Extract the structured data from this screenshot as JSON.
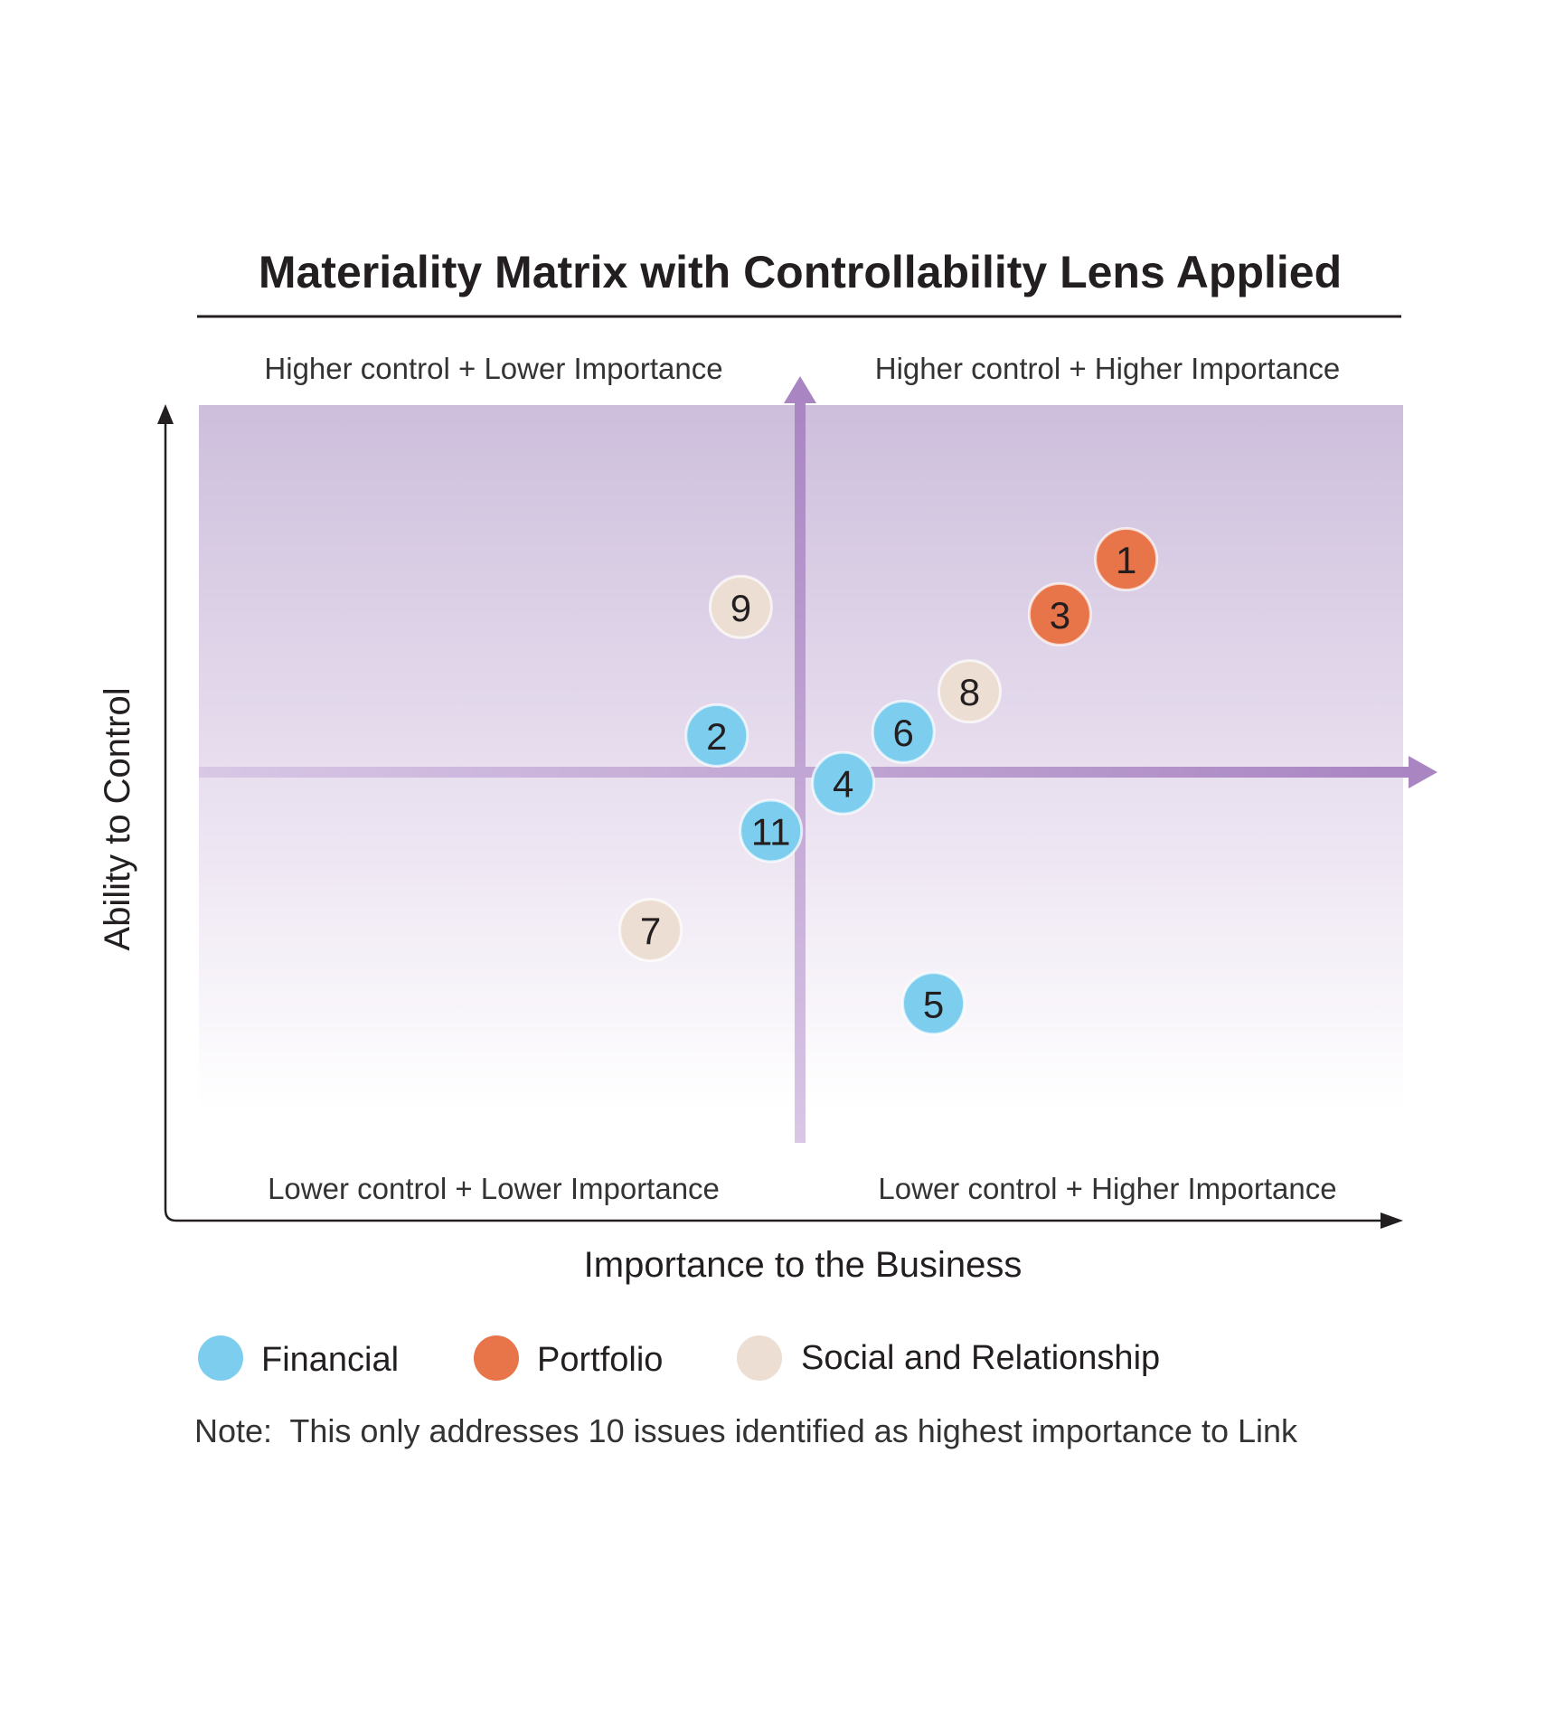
{
  "chart_data": {
    "type": "scatter",
    "title": "Materiality Matrix with Controllability Lens Applied",
    "xlabel": "Importance to the Business",
    "ylabel": "Ability to Control",
    "quadrants": {
      "top_left": "Higher control + Lower Importance",
      "top_right": "Higher control + Higher Importance",
      "bottom_left": "Lower control + Lower Importance",
      "bottom_right": "Lower control + Higher Importance"
    },
    "xlim": [
      0,
      10
    ],
    "ylim": [
      0,
      10
    ],
    "grid": false,
    "legend_position": "bottom",
    "colors": {
      "Financial": "#7dcdef",
      "Portfolio": "#e8744a",
      "Social and Relationship": "#ecded2",
      "background_top": "#cdbfdc",
      "background_bottom": "#ffffff",
      "quadrant_lines": "#a985c2"
    },
    "series": [
      {
        "name": "Financial",
        "points": [
          {
            "label": "2",
            "x": 4.3,
            "y": 5.5
          },
          {
            "label": "4",
            "x": 5.35,
            "y": 4.85
          },
          {
            "label": "5",
            "x": 6.1,
            "y": 1.85
          },
          {
            "label": "6",
            "x": 5.85,
            "y": 5.55
          },
          {
            "label": "11",
            "x": 4.75,
            "y": 4.2
          }
        ]
      },
      {
        "name": "Portfolio",
        "points": [
          {
            "label": "1",
            "x": 7.7,
            "y": 7.9
          },
          {
            "label": "3",
            "x": 7.15,
            "y": 7.15
          }
        ]
      },
      {
        "name": "Social and Relationship",
        "points": [
          {
            "label": "7",
            "x": 3.75,
            "y": 2.85
          },
          {
            "label": "8",
            "x": 6.4,
            "y": 6.1
          },
          {
            "label": "9",
            "x": 4.5,
            "y": 7.25
          }
        ]
      }
    ],
    "legend": [
      "Financial",
      "Portfolio",
      "Social and Relationship"
    ],
    "note": "Note:  This only addresses 10 issues identified as highest importance to Link"
  }
}
